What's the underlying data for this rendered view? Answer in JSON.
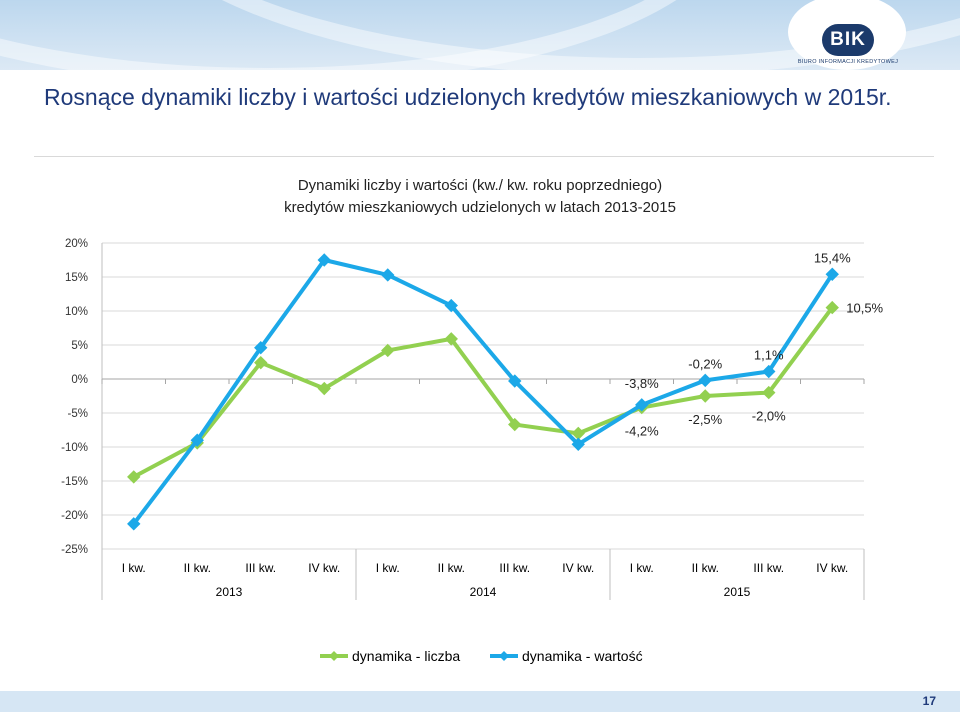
{
  "header": {
    "logo_text": "BIK",
    "logo_caption": "BIURO INFORMACJI KREDYTOWEJ",
    "colors": {
      "band": "#bcd7ee",
      "logo": "#1b3a6b"
    }
  },
  "slide": {
    "title": "Rosnące dynamiki liczby i wartości udzielonych kredytów mieszkaniowych w 2015r.",
    "page_number": "17"
  },
  "chart_data": {
    "type": "line",
    "title_line1": "Dynamiki liczby i wartości (kw./ kw. roku poprzedniego)",
    "title_line2": "kredytów mieszkaniowych udzielonych w latach 2013-2015",
    "categories": [
      "I kw.",
      "II kw.",
      "III kw.",
      "IV kw.",
      "I kw.",
      "II kw.",
      "III kw.",
      "IV kw.",
      "I kw.",
      "II kw.",
      "III kw.",
      "IV kw."
    ],
    "groups": [
      "2013",
      "2014",
      "2015"
    ],
    "ylim": [
      -25,
      20
    ],
    "yticks": [
      20,
      15,
      10,
      5,
      0,
      -5,
      -10,
      -15,
      -20,
      -25
    ],
    "ytick_labels": [
      "20%",
      "15%",
      "10%",
      "5%",
      "0%",
      "-5%",
      "-10%",
      "-15%",
      "-20%",
      "-25%"
    ],
    "series": [
      {
        "name": "dynamika - liczba",
        "color": "#92d050",
        "values": [
          -14.4,
          -9.4,
          2.4,
          -1.4,
          4.2,
          5.9,
          -6.7,
          -8.0,
          -4.2,
          -2.5,
          -2.0,
          10.5
        ]
      },
      {
        "name": "dynamika - wartość",
        "color": "#1ca8e8",
        "values": [
          -21.3,
          -9.0,
          4.6,
          17.5,
          15.3,
          10.8,
          -0.3,
          -9.6,
          -3.8,
          -0.2,
          1.1,
          15.4
        ]
      }
    ],
    "annotations": [
      {
        "text": "15,4%",
        "series": 1,
        "index": 11,
        "pos": "above"
      },
      {
        "text": "10,5%",
        "series": 0,
        "index": 11,
        "pos": "right"
      },
      {
        "text": "-0,2%",
        "series": 1,
        "index": 9,
        "pos": "above"
      },
      {
        "text": "1,1%",
        "series": 1,
        "index": 10,
        "pos": "above"
      },
      {
        "text": "-3,8%",
        "series": 1,
        "index": 8,
        "pos": "upper"
      },
      {
        "text": "-4,2%",
        "series": 0,
        "index": 8,
        "pos": "below"
      },
      {
        "text": "-2,5%",
        "series": 0,
        "index": 9,
        "pos": "below"
      },
      {
        "text": "-2,0%",
        "series": 0,
        "index": 10,
        "pos": "below"
      }
    ],
    "legend": [
      "dynamika - liczba",
      "dynamika - wartość"
    ],
    "legend_position": "bottom"
  }
}
